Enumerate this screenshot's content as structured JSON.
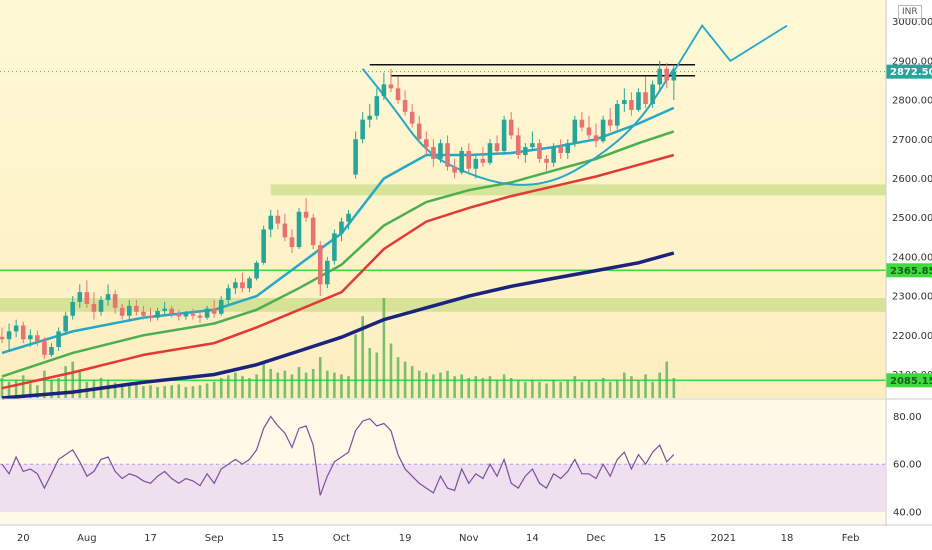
{
  "chart_data": {
    "type": "candlestick",
    "currency": "INR",
    "last_price_label": "2872.50",
    "price_axis": {
      "ticks": [
        "3000.00",
        "2900.00",
        "2800.00",
        "2700.00",
        "2600.00",
        "2500.00",
        "2400.00",
        "2300.00",
        "2200.00",
        "2100.00"
      ],
      "ylim": [
        2040,
        3040
      ]
    },
    "levels": [
      {
        "value": 2365.85,
        "label": "2365.85"
      },
      {
        "value": 2085.15,
        "label": "2085.15"
      }
    ],
    "zones": [
      [
        2557,
        2585
      ],
      [
        2260,
        2295
      ]
    ],
    "time_axis": {
      "ticks": [
        {
          "label": "20",
          "t": 3
        },
        {
          "label": "Aug",
          "t": 12
        },
        {
          "label": "17",
          "t": 21
        },
        {
          "label": "Sep",
          "t": 30
        },
        {
          "label": "15",
          "t": 39
        },
        {
          "label": "Oct",
          "t": 48
        },
        {
          "label": "19",
          "t": 57
        },
        {
          "label": "Nov",
          "t": 66
        },
        {
          "label": "14",
          "t": 75
        },
        {
          "label": "Dec",
          "t": 84
        },
        {
          "label": "15",
          "t": 93
        },
        {
          "label": "2021",
          "t": 102
        },
        {
          "label": "18",
          "t": 111
        },
        {
          "label": "Feb",
          "t": 120
        }
      ],
      "range": [
        0,
        125
      ]
    },
    "candles_ohlc": [
      [
        2196,
        2220,
        2180,
        2190
      ],
      [
        2190,
        2230,
        2160,
        2210
      ],
      [
        2210,
        2240,
        2195,
        2225
      ],
      [
        2225,
        2235,
        2180,
        2190
      ],
      [
        2190,
        2215,
        2170,
        2200
      ],
      [
        2200,
        2212,
        2172,
        2185
      ],
      [
        2185,
        2195,
        2140,
        2150
      ],
      [
        2150,
        2180,
        2145,
        2170
      ],
      [
        2170,
        2220,
        2160,
        2210
      ],
      [
        2210,
        2260,
        2200,
        2250
      ],
      [
        2250,
        2300,
        2240,
        2285
      ],
      [
        2285,
        2330,
        2270,
        2310
      ],
      [
        2310,
        2340,
        2270,
        2280
      ],
      [
        2280,
        2310,
        2240,
        2260
      ],
      [
        2260,
        2300,
        2250,
        2290
      ],
      [
        2290,
        2330,
        2275,
        2305
      ],
      [
        2305,
        2315,
        2255,
        2270
      ],
      [
        2270,
        2280,
        2240,
        2250
      ],
      [
        2250,
        2290,
        2240,
        2275
      ],
      [
        2275,
        2290,
        2250,
        2260
      ],
      [
        2260,
        2275,
        2240,
        2250
      ],
      [
        2250,
        2270,
        2235,
        2245
      ],
      [
        2245,
        2270,
        2238,
        2262
      ],
      [
        2262,
        2285,
        2250,
        2268
      ],
      [
        2268,
        2275,
        2245,
        2255
      ],
      [
        2255,
        2265,
        2238,
        2248
      ],
      [
        2248,
        2262,
        2240,
        2255
      ],
      [
        2255,
        2268,
        2240,
        2250
      ],
      [
        2250,
        2260,
        2232,
        2245
      ],
      [
        2245,
        2275,
        2240,
        2268
      ],
      [
        2268,
        2290,
        2245,
        2255
      ],
      [
        2255,
        2300,
        2250,
        2290
      ],
      [
        2290,
        2330,
        2280,
        2320
      ],
      [
        2320,
        2345,
        2305,
        2335
      ],
      [
        2335,
        2360,
        2310,
        2320
      ],
      [
        2320,
        2350,
        2310,
        2345
      ],
      [
        2345,
        2390,
        2340,
        2385
      ],
      [
        2385,
        2480,
        2380,
        2470
      ],
      [
        2470,
        2520,
        2450,
        2505
      ],
      [
        2505,
        2520,
        2470,
        2485
      ],
      [
        2485,
        2510,
        2440,
        2450
      ],
      [
        2450,
        2470,
        2410,
        2425
      ],
      [
        2425,
        2525,
        2420,
        2515
      ],
      [
        2515,
        2550,
        2490,
        2500
      ],
      [
        2500,
        2510,
        2420,
        2430
      ],
      [
        2430,
        2440,
        2300,
        2330
      ],
      [
        2330,
        2400,
        2320,
        2390
      ],
      [
        2390,
        2470,
        2380,
        2460
      ],
      [
        2460,
        2500,
        2440,
        2490
      ],
      [
        2490,
        2520,
        2470,
        2510
      ],
      [
        2610,
        2720,
        2600,
        2700
      ],
      [
        2700,
        2770,
        2690,
        2750
      ],
      [
        2750,
        2790,
        2730,
        2760
      ],
      [
        2760,
        2830,
        2750,
        2810
      ],
      [
        2810,
        2870,
        2800,
        2840
      ],
      [
        2840,
        2880,
        2820,
        2830
      ],
      [
        2830,
        2860,
        2790,
        2800
      ],
      [
        2800,
        2825,
        2760,
        2770
      ],
      [
        2770,
        2790,
        2730,
        2740
      ],
      [
        2740,
        2760,
        2690,
        2700
      ],
      [
        2700,
        2720,
        2660,
        2680
      ],
      [
        2680,
        2700,
        2630,
        2650
      ],
      [
        2650,
        2700,
        2640,
        2690
      ],
      [
        2690,
        2710,
        2620,
        2630
      ],
      [
        2630,
        2650,
        2600,
        2615
      ],
      [
        2615,
        2680,
        2610,
        2670
      ],
      [
        2670,
        2690,
        2615,
        2625
      ],
      [
        2625,
        2660,
        2600,
        2650
      ],
      [
        2650,
        2680,
        2630,
        2640
      ],
      [
        2640,
        2700,
        2635,
        2690
      ],
      [
        2690,
        2710,
        2660,
        2670
      ],
      [
        2670,
        2760,
        2660,
        2750
      ],
      [
        2750,
        2770,
        2700,
        2710
      ],
      [
        2710,
        2730,
        2650,
        2660
      ],
      [
        2660,
        2690,
        2640,
        2680
      ],
      [
        2680,
        2720,
        2670,
        2690
      ],
      [
        2690,
        2700,
        2640,
        2650
      ],
      [
        2650,
        2660,
        2620,
        2640
      ],
      [
        2640,
        2690,
        2630,
        2680
      ],
      [
        2680,
        2700,
        2650,
        2665
      ],
      [
        2665,
        2700,
        2650,
        2690
      ],
      [
        2690,
        2760,
        2680,
        2750
      ],
      [
        2750,
        2770,
        2720,
        2730
      ],
      [
        2730,
        2760,
        2700,
        2710
      ],
      [
        2710,
        2740,
        2680,
        2695
      ],
      [
        2695,
        2760,
        2690,
        2750
      ],
      [
        2750,
        2780,
        2720,
        2735
      ],
      [
        2735,
        2800,
        2725,
        2790
      ],
      [
        2790,
        2830,
        2770,
        2800
      ],
      [
        2800,
        2820,
        2760,
        2775
      ],
      [
        2775,
        2830,
        2770,
        2820
      ],
      [
        2820,
        2860,
        2780,
        2790
      ],
      [
        2790,
        2850,
        2780,
        2840
      ],
      [
        2840,
        2900,
        2820,
        2880
      ],
      [
        2880,
        2895,
        2830,
        2850
      ],
      [
        2850,
        2890,
        2800,
        2872.5
      ]
    ],
    "moving_averages": [
      {
        "color": "#26a8c6",
        "values": [
          [
            0,
            2155
          ],
          [
            10,
            2210
          ],
          [
            20,
            2245
          ],
          [
            30,
            2265
          ],
          [
            36,
            2300
          ],
          [
            42,
            2380
          ],
          [
            48,
            2460
          ],
          [
            54,
            2600
          ],
          [
            60,
            2660
          ],
          [
            66,
            2660
          ],
          [
            72,
            2665
          ],
          [
            78,
            2680
          ],
          [
            84,
            2700
          ],
          [
            90,
            2740
          ],
          [
            95,
            2780
          ]
        ]
      },
      {
        "color": "#4caf50",
        "values": [
          [
            0,
            2095
          ],
          [
            10,
            2155
          ],
          [
            20,
            2200
          ],
          [
            30,
            2230
          ],
          [
            36,
            2265
          ],
          [
            42,
            2320
          ],
          [
            48,
            2380
          ],
          [
            54,
            2480
          ],
          [
            60,
            2540
          ],
          [
            66,
            2570
          ],
          [
            72,
            2590
          ],
          [
            78,
            2620
          ],
          [
            84,
            2650
          ],
          [
            90,
            2690
          ],
          [
            95,
            2720
          ]
        ]
      },
      {
        "color": "#e53935",
        "values": [
          [
            0,
            2065
          ],
          [
            10,
            2105
          ],
          [
            20,
            2150
          ],
          [
            30,
            2180
          ],
          [
            36,
            2220
          ],
          [
            42,
            2265
          ],
          [
            48,
            2310
          ],
          [
            54,
            2420
          ],
          [
            60,
            2490
          ],
          [
            66,
            2525
          ],
          [
            72,
            2555
          ],
          [
            78,
            2580
          ],
          [
            84,
            2605
          ],
          [
            90,
            2635
          ],
          [
            95,
            2660
          ]
        ]
      },
      {
        "color": "#1a237e",
        "values": [
          [
            0,
            2040
          ],
          [
            10,
            2055
          ],
          [
            20,
            2080
          ],
          [
            30,
            2100
          ],
          [
            36,
            2125
          ],
          [
            42,
            2160
          ],
          [
            48,
            2195
          ],
          [
            54,
            2240
          ],
          [
            60,
            2270
          ],
          [
            66,
            2300
          ],
          [
            72,
            2325
          ],
          [
            78,
            2345
          ],
          [
            84,
            2365
          ],
          [
            90,
            2385
          ],
          [
            95,
            2410
          ]
        ]
      }
    ],
    "annotation_lines": [
      {
        "color": "#000",
        "values": [
          [
            52,
            2890
          ],
          [
            98,
            2890
          ]
        ]
      },
      {
        "color": "#000",
        "values": [
          [
            55,
            2862
          ],
          [
            98,
            2862
          ]
        ]
      }
    ],
    "projection_line": [
      [
        95,
        2872.5
      ],
      [
        99,
        2990
      ],
      [
        103,
        2900
      ],
      [
        111,
        2990
      ]
    ],
    "cup_curve": [
      [
        51,
        2880
      ],
      [
        55,
        2790
      ],
      [
        60,
        2665
      ],
      [
        66,
        2610
      ],
      [
        72,
        2580
      ],
      [
        78,
        2590
      ],
      [
        84,
        2650
      ],
      [
        90,
        2740
      ],
      [
        95,
        2880
      ]
    ],
    "volume": [
      22,
      18,
      20,
      25,
      16,
      14,
      30,
      20,
      22,
      35,
      40,
      30,
      18,
      20,
      22,
      20,
      17,
      15,
      14,
      16,
      13,
      14,
      12,
      13,
      14,
      15,
      12,
      13,
      14,
      16,
      18,
      22,
      25,
      28,
      24,
      22,
      26,
      38,
      32,
      28,
      30,
      26,
      34,
      28,
      32,
      45,
      30,
      28,
      26,
      24,
      70,
      90,
      55,
      50,
      110,
      60,
      45,
      40,
      35,
      30,
      28,
      26,
      28,
      30,
      24,
      26,
      22,
      24,
      22,
      24,
      20,
      26,
      22,
      20,
      18,
      20,
      18,
      16,
      20,
      18,
      20,
      24,
      18,
      20,
      18,
      22,
      18,
      20,
      28,
      24,
      20,
      26,
      18,
      28,
      40,
      22
    ],
    "rsi": {
      "ticks": [
        "80.00",
        "60.00",
        "40.00"
      ],
      "ylim": [
        35,
        86
      ],
      "band": [
        40,
        60
      ],
      "values": [
        60,
        56,
        63,
        57,
        58,
        56,
        50,
        56,
        62,
        64,
        66,
        61,
        55,
        57,
        62,
        63,
        57,
        54,
        56,
        55,
        53,
        52,
        55,
        57,
        54,
        52,
        54,
        53,
        51,
        56,
        52,
        58,
        60,
        62,
        60,
        62,
        66,
        75,
        80,
        76,
        73,
        67,
        75,
        76,
        68,
        47,
        55,
        61,
        63,
        65,
        74,
        78,
        79,
        76,
        77,
        74,
        64,
        58,
        55,
        52,
        50,
        48,
        55,
        50,
        49,
        58,
        52,
        56,
        54,
        60,
        55,
        62,
        52,
        50,
        55,
        58,
        52,
        50,
        56,
        54,
        57,
        62,
        56,
        56,
        54,
        60,
        55,
        62,
        65,
        58,
        64,
        60,
        65,
        68,
        61,
        64
      ]
    }
  }
}
